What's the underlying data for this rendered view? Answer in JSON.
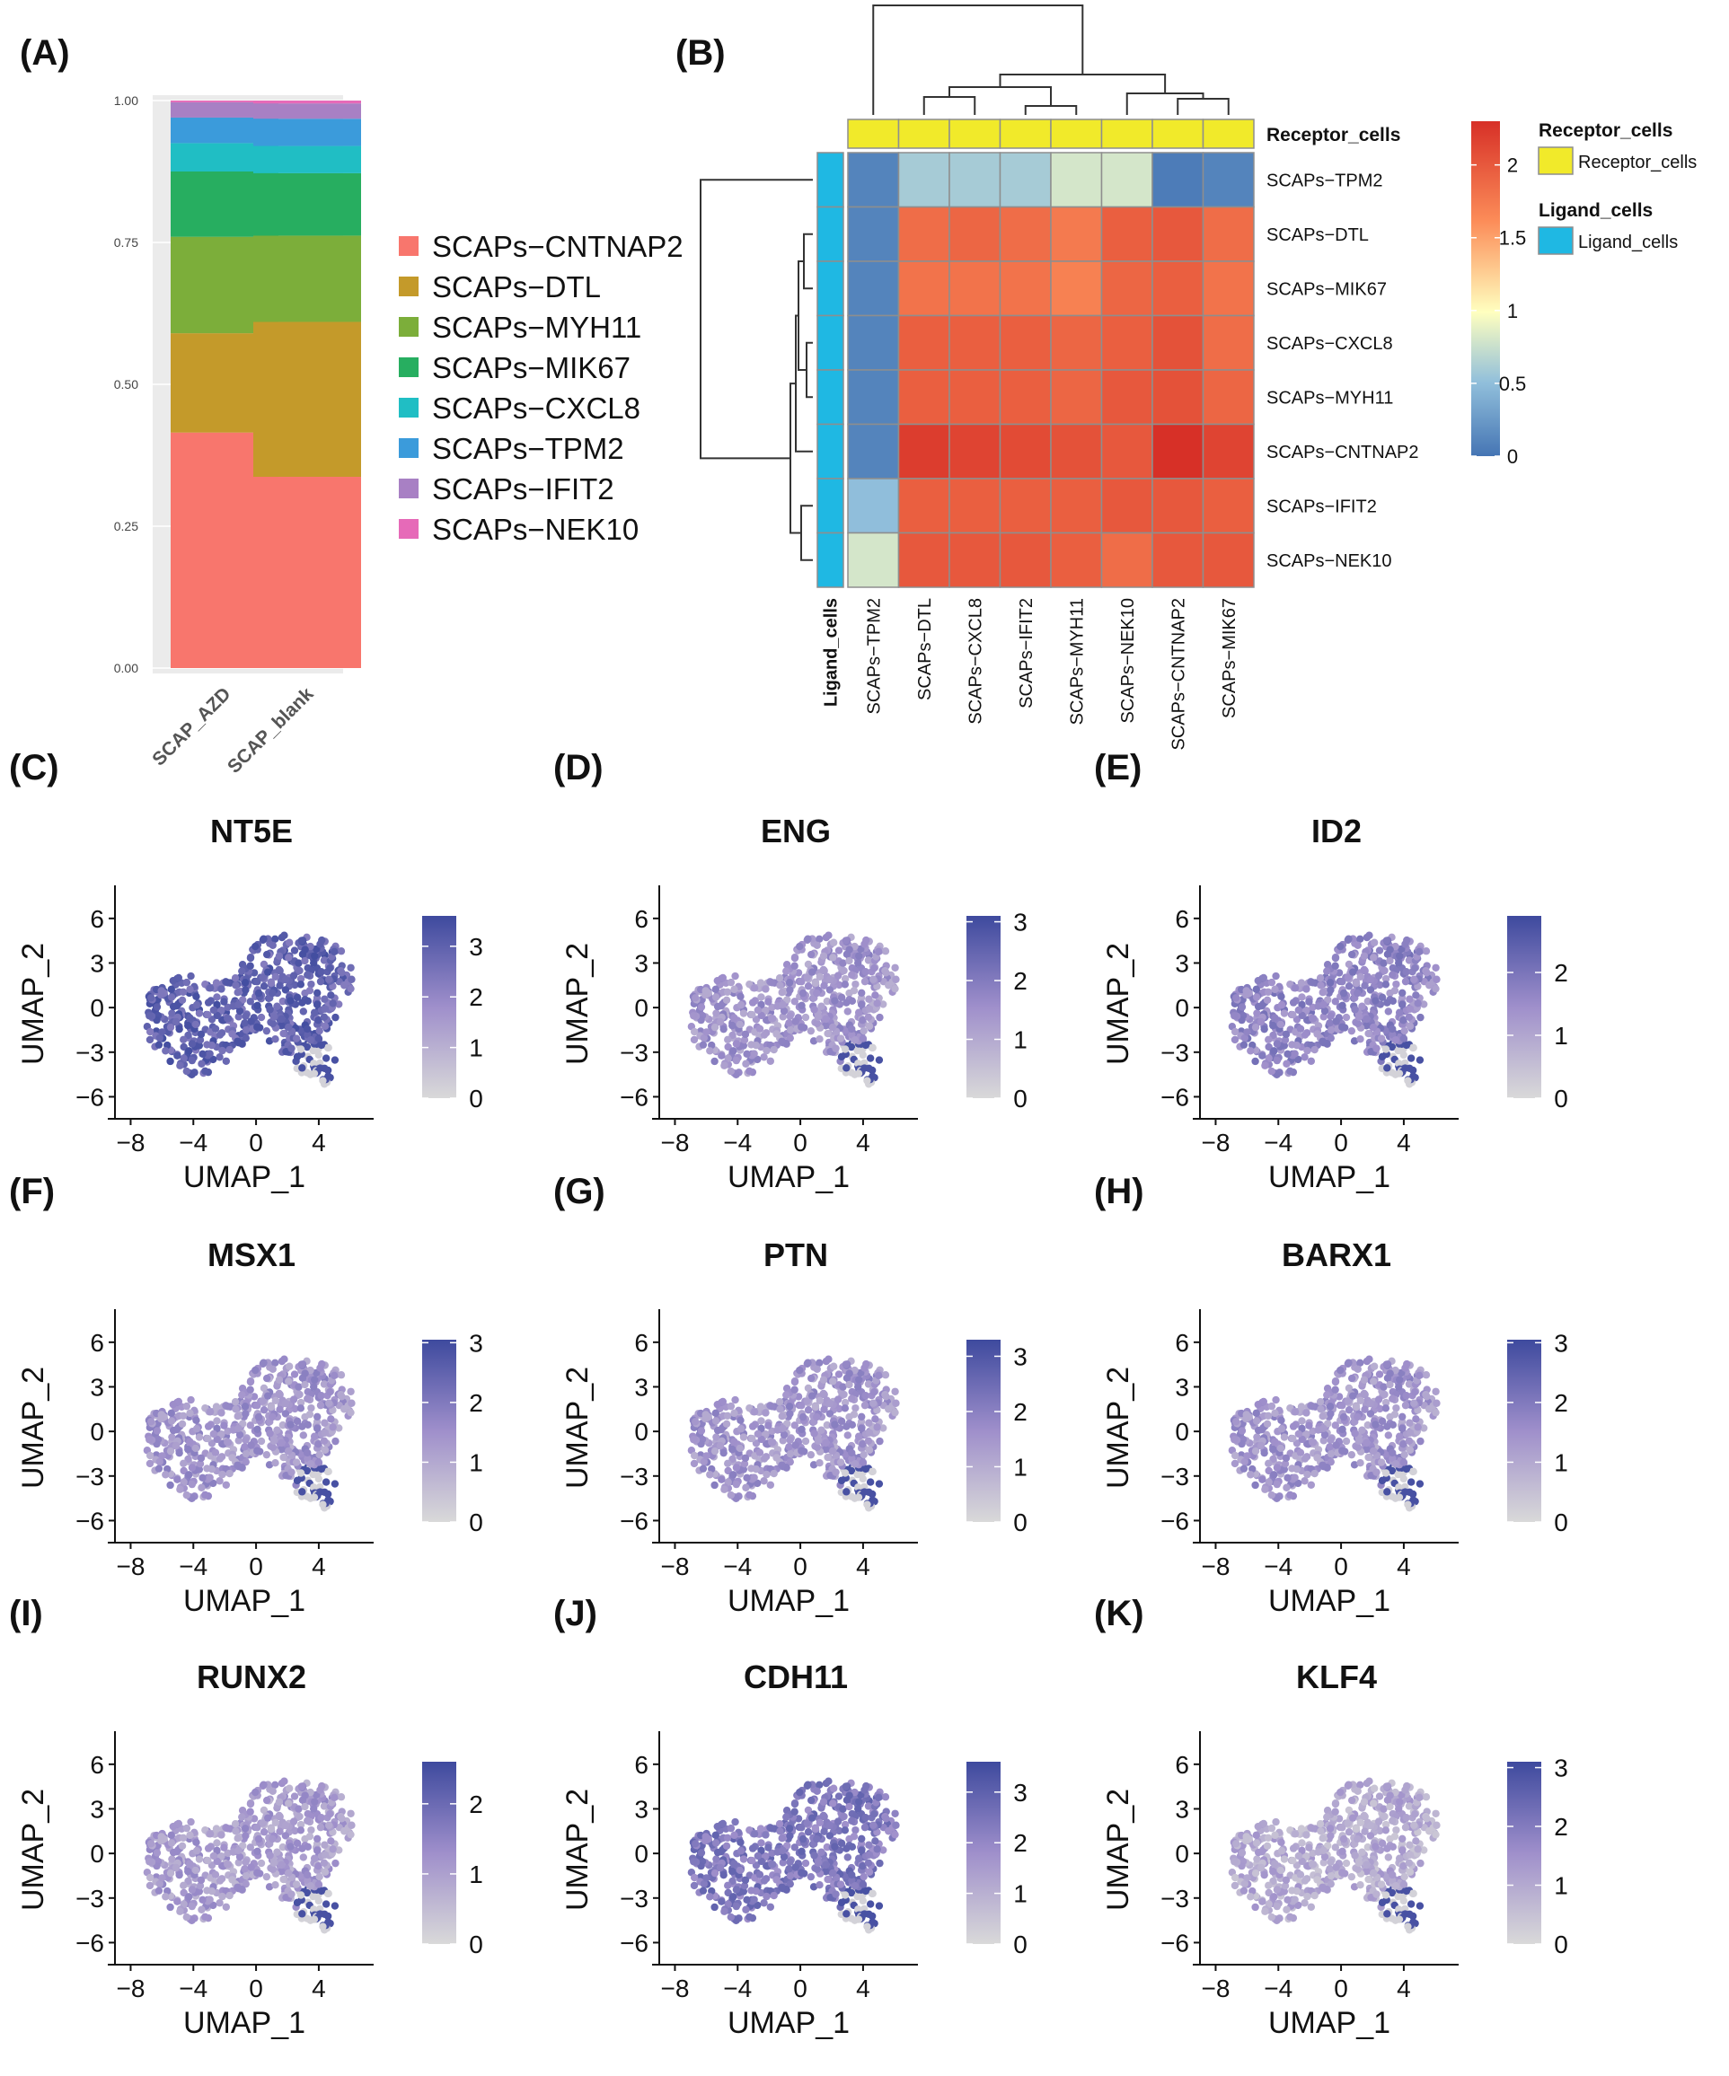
{
  "colors": {
    "stack": [
      "#F8766D",
      "#C49A2A",
      "#7CAE3A",
      "#27AE60",
      "#20BEC4",
      "#3B9BDB",
      "#A880C4",
      "#E66AB8"
    ],
    "heatLow": "#4575B4",
    "heatMid": "#FFFFBF",
    "heatHigh": "#D73027",
    "receptorBar": "#F1EA2A",
    "ligandBar": "#1FB8E3",
    "umapLow": "#D9D9D9",
    "umapHigh": "#3E4A9E"
  },
  "chart_data": [
    {
      "panel": "(A)",
      "type": "bar",
      "stacked": true,
      "categories": [
        "SCAP_AZD",
        "SCAP_blank"
      ],
      "series": [
        {
          "name": "SCAPs−CNTNAP2",
          "values": [
            0.415,
            0.337
          ]
        },
        {
          "name": "SCAPs−DTL",
          "values": [
            0.175,
            0.273
          ]
        },
        {
          "name": "SCAPs−MYH11",
          "values": [
            0.17,
            0.152
          ]
        },
        {
          "name": "SCAPs−MIK67",
          "values": [
            0.115,
            0.11
          ]
        },
        {
          "name": "SCAPs−CXCL8",
          "values": [
            0.05,
            0.048
          ]
        },
        {
          "name": "SCAPs−TPM2",
          "values": [
            0.045,
            0.048
          ]
        },
        {
          "name": "SCAPs−IFIT2",
          "values": [
            0.027,
            0.027
          ]
        },
        {
          "name": "SCAPs−NEK10",
          "values": [
            0.003,
            0.005
          ]
        }
      ],
      "yticks": [
        "0.00",
        "0.25",
        "0.50",
        "0.75",
        "1.00"
      ],
      "ylim": [
        0,
        1
      ]
    },
    {
      "panel": "(B)",
      "type": "heatmap",
      "rows": [
        "SCAPs−TPM2",
        "SCAPs−DTL",
        "SCAPs−MIK67",
        "SCAPs−CXCL8",
        "SCAPs−MYH11",
        "SCAPs−CNTNAP2",
        "SCAPs−IFIT2",
        "SCAPs−NEK10"
      ],
      "cols": [
        "SCAPs−TPM2",
        "SCAPs−DTL",
        "SCAPs−CXCL8",
        "SCAPs−IFIT2",
        "SCAPs−MYH11",
        "SCAPs−NEK10",
        "SCAPs−CNTNAP2",
        "SCAPs−MIK67"
      ],
      "values": [
        [
          0.1,
          0.6,
          0.6,
          0.6,
          0.8,
          0.8,
          0.05,
          0.1
        ],
        [
          0.1,
          1.85,
          1.9,
          1.85,
          1.75,
          1.95,
          2.0,
          1.85
        ],
        [
          0.1,
          1.8,
          1.8,
          1.8,
          1.7,
          1.9,
          1.95,
          1.8
        ],
        [
          0.1,
          1.95,
          1.95,
          1.95,
          1.9,
          1.95,
          2.05,
          1.85
        ],
        [
          0.1,
          1.95,
          1.95,
          1.95,
          1.9,
          2.0,
          2.05,
          1.9
        ],
        [
          0.1,
          2.2,
          2.15,
          2.1,
          2.05,
          2.0,
          2.3,
          2.15
        ],
        [
          0.5,
          1.95,
          1.95,
          1.95,
          1.95,
          2.0,
          2.0,
          1.95
        ],
        [
          0.8,
          2.0,
          2.0,
          2.0,
          1.95,
          1.85,
          2.0,
          2.0
        ]
      ],
      "colorbar_ticks": [
        "0",
        "0.5",
        "1",
        "1.5",
        "2"
      ],
      "vrange": [
        0,
        2.3
      ],
      "column_annotation": "Receptor_cells",
      "row_annotation": "Ligand_cells",
      "legend": [
        {
          "title": "Receptor_cells",
          "label": "Receptor_cells"
        },
        {
          "title": "Ligand_cells",
          "label": "Ligand_cells"
        }
      ]
    },
    {
      "type": "scatter",
      "kind": "umap-feature-plots",
      "xlabel": "UMAP_1",
      "ylabel": "UMAP_2",
      "xticks": [
        "−8",
        "−4",
        "0",
        "4"
      ],
      "yticks": [
        "6",
        "3",
        "0",
        "−3",
        "−6"
      ],
      "panels": [
        {
          "label": "(C)",
          "gene": "NT5E",
          "cbar_ticks": [
            "0",
            "1",
            "2",
            "3"
          ],
          "max": 3.6,
          "base": 0.8
        },
        {
          "label": "(D)",
          "gene": "ENG",
          "cbar_ticks": [
            "0",
            "1",
            "2",
            "3"
          ],
          "max": 3.1,
          "base": 0.45
        },
        {
          "label": "(E)",
          "gene": "ID2",
          "cbar_ticks": [
            "0",
            "1",
            "2"
          ],
          "max": 2.9,
          "base": 0.55
        },
        {
          "label": "(F)",
          "gene": "MSX1",
          "cbar_ticks": [
            "0",
            "1",
            "2",
            "3"
          ],
          "max": 3.05,
          "base": 0.45
        },
        {
          "label": "(G)",
          "gene": "PTN",
          "cbar_ticks": [
            "0",
            "1",
            "2",
            "3"
          ],
          "max": 3.3,
          "base": 0.45
        },
        {
          "label": "(H)",
          "gene": "BARX1",
          "cbar_ticks": [
            "0",
            "1",
            "2",
            "3"
          ],
          "max": 3.05,
          "base": 0.45
        },
        {
          "label": "(I)",
          "gene": "RUNX2",
          "cbar_ticks": [
            "0",
            "1",
            "2"
          ],
          "max": 2.6,
          "base": 0.4
        },
        {
          "label": "(J)",
          "gene": "CDH11",
          "cbar_ticks": [
            "0",
            "1",
            "2",
            "3"
          ],
          "max": 3.6,
          "base": 0.65
        },
        {
          "label": "(K)",
          "gene": "KLF4",
          "cbar_ticks": [
            "0",
            "1",
            "2",
            "3"
          ],
          "max": 3.1,
          "base": 0.3
        }
      ]
    }
  ]
}
